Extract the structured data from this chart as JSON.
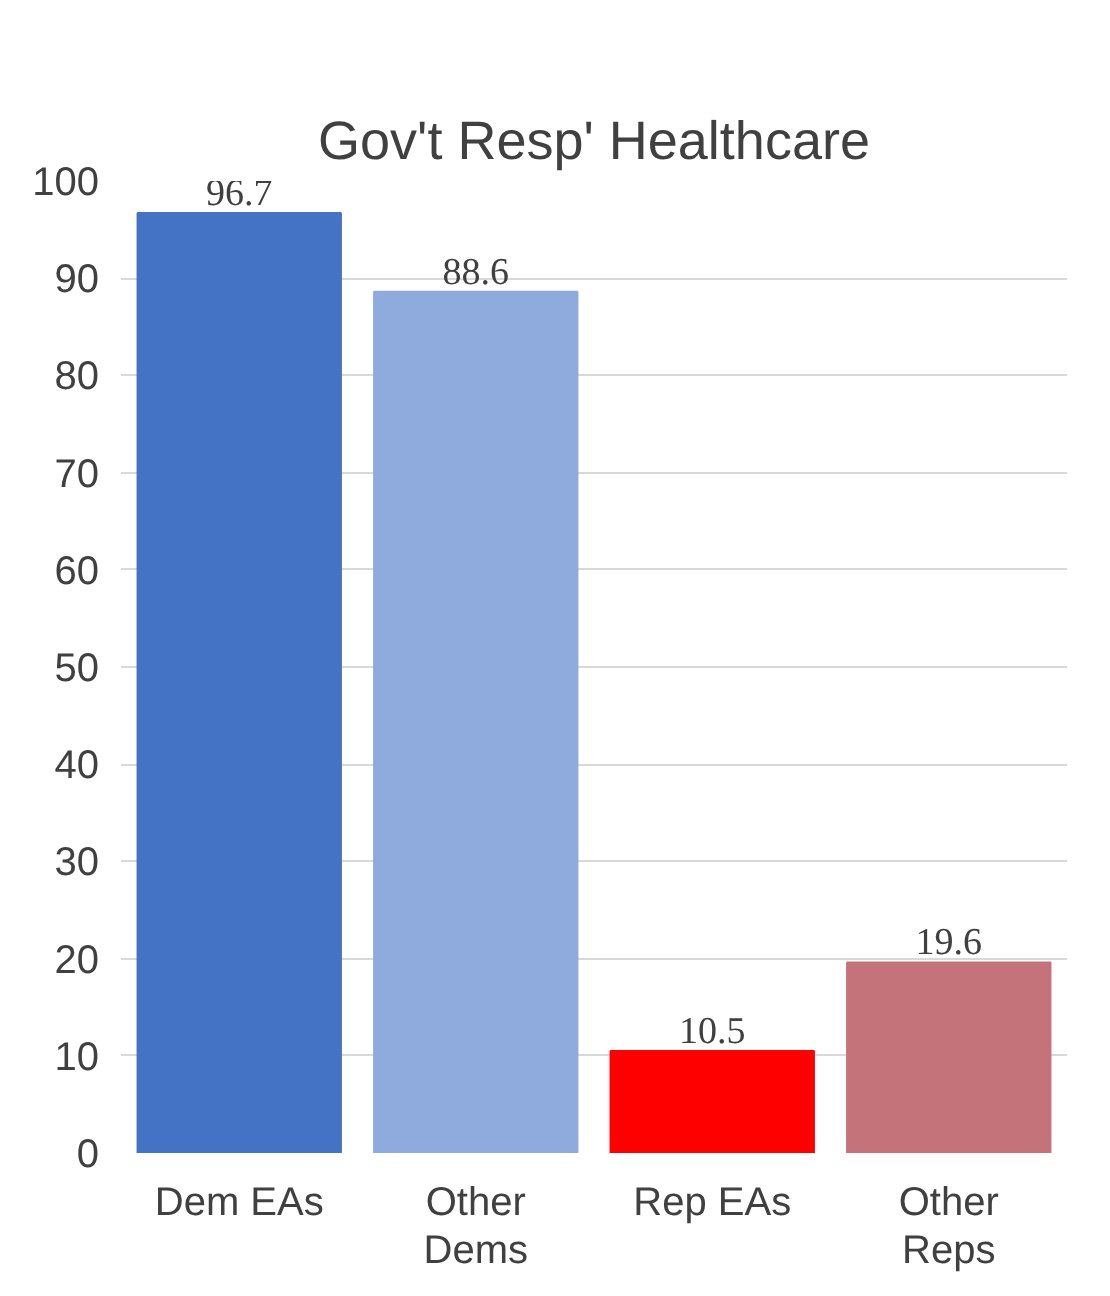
{
  "chart_data": {
    "type": "bar",
    "title": "Gov't Resp' Healthcare",
    "categories": [
      "Dem EAs",
      "Other Dems",
      "Rep EAs",
      "Other Reps"
    ],
    "values": [
      96.7,
      88.6,
      10.5,
      19.6
    ],
    "colors": [
      "#4472c4",
      "#8faadc",
      "#ff0000",
      "#c5737a"
    ],
    "ylim": [
      0,
      100
    ],
    "yticks": [
      0,
      10,
      20,
      30,
      40,
      50,
      60,
      70,
      80,
      90,
      100
    ],
    "grid": "y",
    "data_labels": true
  }
}
